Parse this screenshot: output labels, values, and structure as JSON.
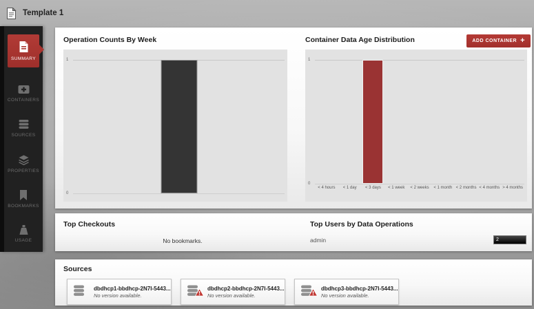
{
  "header": {
    "title": "Template 1"
  },
  "sidebar": {
    "items": [
      {
        "id": "summary",
        "label": "SUMMARY",
        "icon": "summary-document-icon",
        "active": true
      },
      {
        "id": "containers",
        "label": "CONTAINERS",
        "icon": "container-add-icon",
        "active": false
      },
      {
        "id": "sources",
        "label": "SOURCES",
        "icon": "database-icon",
        "active": false
      },
      {
        "id": "properties",
        "label": "PROPERTIES",
        "icon": "layers-icon",
        "active": false
      },
      {
        "id": "bookmarks",
        "label": "BOOKMARKS",
        "icon": "bookmark-icon",
        "active": false
      },
      {
        "id": "usage",
        "label": "USAGE",
        "icon": "weight-icon",
        "active": false
      }
    ]
  },
  "toolbar": {
    "add_container_label": "ADD CONTAINER",
    "add_container_plus": "+"
  },
  "chart_data": [
    {
      "type": "bar",
      "title": "Operation Counts By Week",
      "categories": [
        ""
      ],
      "values": [
        1
      ],
      "xlabel": "",
      "ylabel": "",
      "ylim": [
        0,
        1
      ],
      "yticks": [
        1,
        0
      ],
      "bar_color": "#343434",
      "grid": true,
      "legend": false
    },
    {
      "type": "bar",
      "title": "Container Data Age Distribution",
      "categories": [
        "< 4 hours",
        "< 1 day",
        "< 3 days",
        "< 1 week",
        "< 2 weeks",
        "< 1 month",
        "< 2 months",
        "< 4 months",
        "> 4 months"
      ],
      "values": [
        0,
        0,
        1,
        0,
        0,
        0,
        0,
        0,
        0
      ],
      "xlabel": "",
      "ylabel": "",
      "ylim": [
        0,
        1
      ],
      "yticks": [
        1,
        0
      ],
      "bar_color": "#9a3333",
      "grid": true,
      "legend": false
    }
  ],
  "top_checkouts": {
    "title": "Top Checkouts",
    "empty_message": "No bookmarks."
  },
  "top_users": {
    "title": "Top Users by Data Operations",
    "rows": [
      {
        "user": "admin",
        "operations": 2
      }
    ]
  },
  "sources": {
    "title": "Sources",
    "cards": [
      {
        "name": "dbdhcp1-bbdhcp-2N7I-5443...",
        "status": "No version available.",
        "warning": false
      },
      {
        "name": "dbdhcp2-bbdhcp-2N7I-5443...",
        "status": "No version available.",
        "warning": true
      },
      {
        "name": "dbdhcp3-bbdhcp-2N7I-5443...",
        "status": "No version available.",
        "warning": true
      }
    ]
  },
  "colors": {
    "accent_red": "#a93530",
    "bar_dark": "#343434",
    "bar_red": "#9a3333",
    "sidebar_bg": "#212121",
    "user_bar_black": "#111111"
  }
}
